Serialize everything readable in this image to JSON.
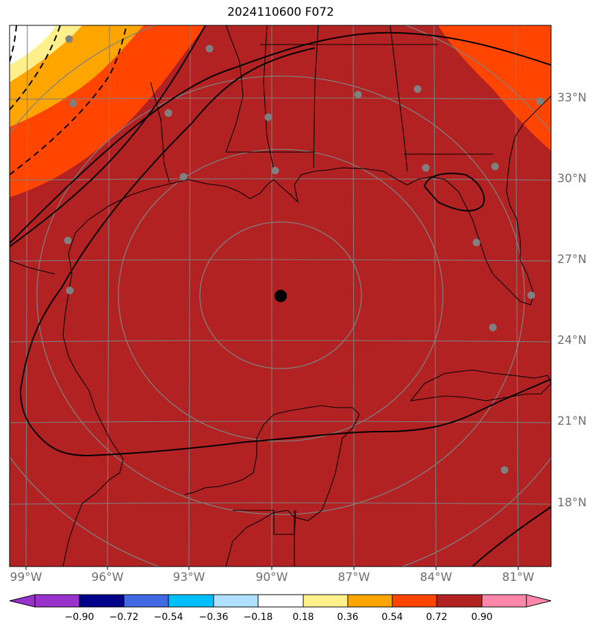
{
  "title": "2024110600 F072",
  "colors": {
    "field": "#b22222",
    "orange_red": "#ff4500",
    "orange": "#ffa500",
    "yellow": "#fff08c",
    "coast": "#000000",
    "grid": "#808080",
    "label": "#6e6e6e",
    "center_dot": "#000000",
    "station_dot": "#808080"
  },
  "axes": {
    "lon_labels": [
      "99°W",
      "96°W",
      "93°W",
      "90°W",
      "87°W",
      "84°W",
      "81°W"
    ],
    "lat_labels": [
      "33°N",
      "30°N",
      "27°N",
      "24°N",
      "21°N",
      "18°N"
    ]
  },
  "colorbar": {
    "colors": [
      "#9932cc",
      "#00008b",
      "#4169e1",
      "#00bfff",
      "#b0e0ff",
      "#ffffff",
      "#fff08c",
      "#ffa500",
      "#ff4500",
      "#b22222",
      "#ff88aa"
    ],
    "labels": [
      "−0.90",
      "−0.72",
      "−0.54",
      "−0.36",
      "−0.18",
      "0.18",
      "0.36",
      "0.54",
      "0.72",
      "0.90"
    ]
  },
  "map_features": {
    "center_marker": "storm-center",
    "range_rings": 4,
    "station_count": 18
  }
}
